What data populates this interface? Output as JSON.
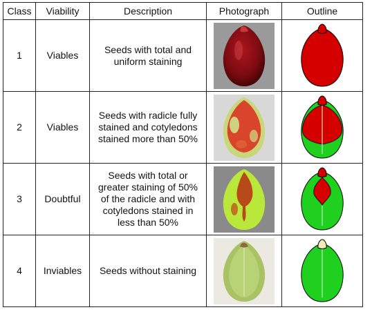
{
  "headers": [
    "Class",
    "Viability",
    "Description",
    "Photograph",
    "Outline"
  ],
  "rows": [
    {
      "class": "1",
      "viability": "Viables",
      "description": "Seeds with total and uniform staining"
    },
    {
      "class": "2",
      "viability": "Viables",
      "description": "Seeds with radicle fully stained and cotyledons stained more than 50%"
    },
    {
      "class": "3",
      "viability": "Doubtful",
      "description": "Seeds with total or greater staining of 50% of the radicle and with cotyledons stained in less than 50%"
    },
    {
      "class": "4",
      "viability": "Inviables",
      "description": "Seeds without staining"
    }
  ],
  "colors": {
    "stained": "#d40000",
    "unstained": "#1fd01f",
    "radicle_unstained": "#f6e9b5",
    "border": "#222222"
  }
}
